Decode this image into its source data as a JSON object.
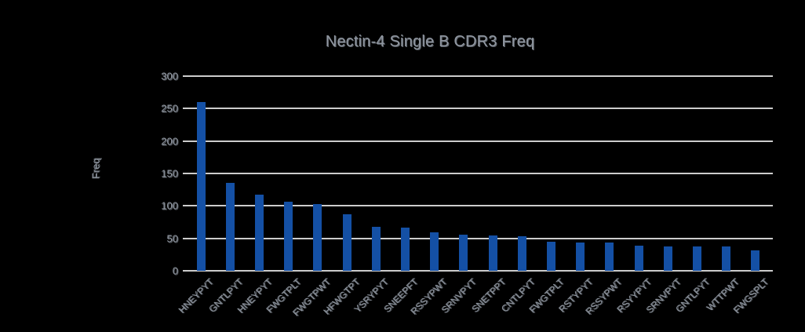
{
  "chart_data": {
    "type": "bar",
    "title": "Nectin-4 Single B CDR3 Freq",
    "ylabel": "Freq",
    "xlabel": "",
    "categories": [
      "HNEYPYT",
      "GNTLPYT",
      "HNEYPYT",
      "FWGTPLT",
      "FWGTPWT",
      "HFWGTPT",
      "YSRYPYT",
      "SNEEPFT",
      "RSSYPWT",
      "SRNVPYT",
      "SNETPPT",
      "CNTLPYT",
      "FWGTPLT",
      "RSTYPYT",
      "RSSYPWT",
      "RSYYPYT",
      "SRNVPYT",
      "GNTLPYT",
      "WTTPWT",
      "FWGSPLT"
    ],
    "values": [
      260,
      135,
      117,
      106,
      103,
      87,
      68,
      66,
      59,
      56,
      55,
      53,
      45,
      44,
      43,
      39,
      38,
      38,
      38,
      31
    ],
    "ylim": [
      0,
      300
    ],
    "yticks": [
      0,
      50,
      100,
      150,
      200,
      250,
      300
    ],
    "grid": true,
    "legend_position": "none",
    "colors": {
      "bar": "#1450a5",
      "background": "#000000",
      "text": "#8f96a0",
      "gridline": "#cccccc"
    }
  }
}
